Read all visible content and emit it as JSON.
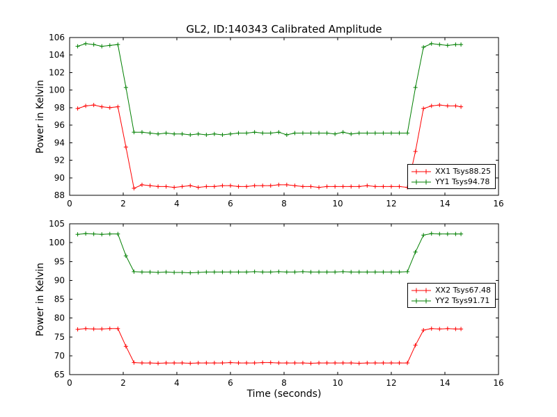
{
  "figure": {
    "background": "#ffffff",
    "frame_color": "#000000"
  },
  "chart_data": [
    {
      "type": "line",
      "title": "GL2, ID:140343 Calibrated Amplitude",
      "ylabel": "Power in Kelvin",
      "xlabel": "",
      "xlim": [
        0,
        16
      ],
      "ylim": [
        88,
        106
      ],
      "xticks": [
        0,
        2,
        4,
        6,
        8,
        10,
        12,
        14,
        16
      ],
      "yticks": [
        88,
        90,
        92,
        94,
        96,
        98,
        100,
        102,
        104,
        106
      ],
      "grid": false,
      "legend_position": "lower right",
      "x": [
        0.3,
        0.6,
        0.9,
        1.2,
        1.5,
        1.8,
        2.1,
        2.4,
        2.7,
        3.0,
        3.3,
        3.6,
        3.9,
        4.2,
        4.5,
        4.8,
        5.1,
        5.4,
        5.7,
        6.0,
        6.3,
        6.6,
        6.9,
        7.2,
        7.5,
        7.8,
        8.1,
        8.4,
        8.7,
        9.0,
        9.3,
        9.6,
        9.9,
        10.2,
        10.5,
        10.8,
        11.1,
        11.4,
        11.7,
        12.0,
        12.3,
        12.6,
        12.9,
        13.2,
        13.5,
        13.8,
        14.1,
        14.4,
        14.6
      ],
      "series": [
        {
          "name": "XX1 Tsys88.25",
          "color": "#ff0000",
          "marker": "+",
          "values": [
            97.9,
            98.2,
            98.3,
            98.1,
            98.0,
            98.1,
            93.5,
            88.8,
            89.2,
            89.1,
            89.0,
            89.0,
            88.9,
            89.0,
            89.1,
            88.9,
            89.0,
            89.0,
            89.1,
            89.1,
            89.0,
            89.0,
            89.1,
            89.1,
            89.1,
            89.2,
            89.2,
            89.1,
            89.0,
            89.0,
            88.9,
            89.0,
            89.0,
            89.0,
            89.0,
            89.0,
            89.1,
            89.0,
            89.0,
            89.0,
            89.0,
            88.9,
            93.0,
            97.9,
            98.2,
            98.3,
            98.2,
            98.2,
            98.1
          ]
        },
        {
          "name": "YY1 Tsys94.78",
          "color": "#007f00",
          "marker": "+",
          "values": [
            105.0,
            105.3,
            105.2,
            105.0,
            105.1,
            105.2,
            100.3,
            95.2,
            95.2,
            95.1,
            95.0,
            95.1,
            95.0,
            95.0,
            94.9,
            95.0,
            94.9,
            95.0,
            94.9,
            95.0,
            95.1,
            95.1,
            95.2,
            95.1,
            95.1,
            95.2,
            94.9,
            95.1,
            95.1,
            95.1,
            95.1,
            95.1,
            95.0,
            95.2,
            95.0,
            95.1,
            95.1,
            95.1,
            95.1,
            95.1,
            95.1,
            95.1,
            100.3,
            104.9,
            105.3,
            105.2,
            105.1,
            105.2,
            105.2
          ]
        }
      ]
    },
    {
      "type": "line",
      "title": "",
      "ylabel": "Power in Kelvin",
      "xlabel": "Time (seconds)",
      "xlim": [
        0,
        16
      ],
      "ylim": [
        65,
        105
      ],
      "xticks": [
        0,
        2,
        4,
        6,
        8,
        10,
        12,
        14,
        16
      ],
      "yticks": [
        65,
        70,
        75,
        80,
        85,
        90,
        95,
        100,
        105
      ],
      "grid": false,
      "legend_position": "center right",
      "x": [
        0.3,
        0.6,
        0.9,
        1.2,
        1.5,
        1.8,
        2.1,
        2.4,
        2.7,
        3.0,
        3.3,
        3.6,
        3.9,
        4.2,
        4.5,
        4.8,
        5.1,
        5.4,
        5.7,
        6.0,
        6.3,
        6.6,
        6.9,
        7.2,
        7.5,
        7.8,
        8.1,
        8.4,
        8.7,
        9.0,
        9.3,
        9.6,
        9.9,
        10.2,
        10.5,
        10.8,
        11.1,
        11.4,
        11.7,
        12.0,
        12.3,
        12.6,
        12.9,
        13.2,
        13.5,
        13.8,
        14.1,
        14.4,
        14.6
      ],
      "series": [
        {
          "name": "XX2 Tsys67.48",
          "color": "#ff0000",
          "marker": "+",
          "values": [
            77.0,
            77.2,
            77.1,
            77.1,
            77.2,
            77.2,
            72.5,
            68.2,
            68.1,
            68.1,
            68.0,
            68.1,
            68.1,
            68.1,
            68.0,
            68.1,
            68.1,
            68.1,
            68.1,
            68.2,
            68.1,
            68.1,
            68.1,
            68.2,
            68.2,
            68.1,
            68.1,
            68.1,
            68.1,
            68.0,
            68.1,
            68.1,
            68.1,
            68.1,
            68.1,
            68.0,
            68.1,
            68.1,
            68.1,
            68.1,
            68.1,
            68.1,
            72.8,
            76.8,
            77.2,
            77.1,
            77.2,
            77.1,
            77.1
          ]
        },
        {
          "name": "YY2 Tsys91.71",
          "color": "#007f00",
          "marker": "+",
          "values": [
            102.2,
            102.4,
            102.3,
            102.2,
            102.3,
            102.3,
            96.5,
            92.3,
            92.2,
            92.2,
            92.1,
            92.2,
            92.1,
            92.1,
            92.0,
            92.1,
            92.2,
            92.2,
            92.2,
            92.2,
            92.2,
            92.2,
            92.3,
            92.2,
            92.2,
            92.3,
            92.2,
            92.2,
            92.3,
            92.2,
            92.2,
            92.2,
            92.2,
            92.3,
            92.2,
            92.2,
            92.2,
            92.2,
            92.2,
            92.2,
            92.2,
            92.3,
            97.5,
            102.0,
            102.4,
            102.3,
            102.3,
            102.3,
            102.3
          ]
        }
      ]
    }
  ]
}
